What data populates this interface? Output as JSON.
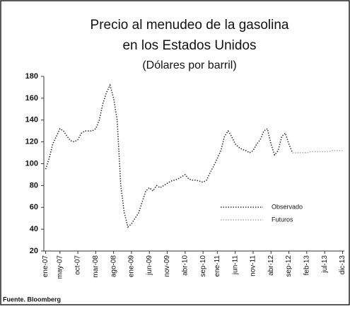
{
  "chart_data": {
    "type": "line",
    "title": "Precio al menudeo de la gasolina",
    "subtitle": "en los Estados Unidos",
    "axis_label": "(Dólares por barril)",
    "source": "Fuente. Bloomberg",
    "categories": [
      "ene-07",
      null,
      null,
      null,
      "may-07",
      null,
      null,
      null,
      null,
      "oct-07",
      null,
      null,
      null,
      null,
      "mar-08",
      null,
      null,
      null,
      null,
      "ago-08",
      null,
      null,
      null,
      null,
      "ene-09",
      null,
      null,
      null,
      null,
      "jun-09",
      null,
      null,
      null,
      null,
      "nov-09",
      null,
      null,
      null,
      null,
      "abr-10",
      null,
      null,
      null,
      null,
      "sep-10",
      null,
      null,
      null,
      "ene-11",
      null,
      null,
      null,
      null,
      "jun-11",
      null,
      null,
      null,
      null,
      "nov-11",
      null,
      null,
      null,
      null,
      "abr-12",
      null,
      null,
      null,
      null,
      "sep-12",
      null,
      null,
      null,
      null,
      "feb-13",
      null,
      null,
      null,
      null,
      "jul-13",
      null,
      null,
      null,
      null,
      "dic-13"
    ],
    "series": [
      {
        "name": "Observado",
        "color": "#333333",
        "values": [
          95,
          105,
          118,
          125,
          132,
          130,
          125,
          121,
          120,
          122,
          128,
          130,
          130,
          130,
          132,
          140,
          155,
          165,
          172,
          160,
          140,
          80,
          55,
          42,
          45,
          50,
          55,
          65,
          75,
          78,
          75,
          80,
          78,
          80,
          82,
          84,
          85,
          86,
          88,
          90,
          86,
          85,
          85,
          84,
          83,
          85,
          92,
          98,
          105,
          112,
          125,
          130,
          125,
          118,
          115,
          113,
          112,
          110,
          112,
          118,
          122,
          130,
          132,
          118,
          108,
          112,
          125,
          128,
          118,
          110,
          null,
          null,
          null,
          null,
          null,
          null,
          null,
          null,
          null,
          null,
          null,
          null,
          null,
          null
        ]
      },
      {
        "name": "Futuros",
        "color": "#aaaaaa",
        "values": [
          null,
          null,
          null,
          null,
          null,
          null,
          null,
          null,
          null,
          null,
          null,
          null,
          null,
          null,
          null,
          null,
          null,
          null,
          null,
          null,
          null,
          null,
          null,
          null,
          null,
          null,
          null,
          null,
          null,
          null,
          null,
          null,
          null,
          null,
          null,
          null,
          null,
          null,
          null,
          null,
          null,
          null,
          null,
          null,
          null,
          null,
          null,
          null,
          null,
          null,
          null,
          null,
          null,
          null,
          null,
          null,
          null,
          null,
          null,
          null,
          null,
          null,
          null,
          null,
          null,
          null,
          null,
          null,
          null,
          110,
          110,
          110,
          110,
          110,
          111,
          111,
          111,
          111,
          111,
          111,
          112,
          112,
          112,
          112
        ]
      }
    ],
    "ylim": [
      20,
      180
    ],
    "yticks": [
      20,
      40,
      60,
      80,
      100,
      120,
      140,
      160,
      180
    ],
    "legend": "right"
  }
}
